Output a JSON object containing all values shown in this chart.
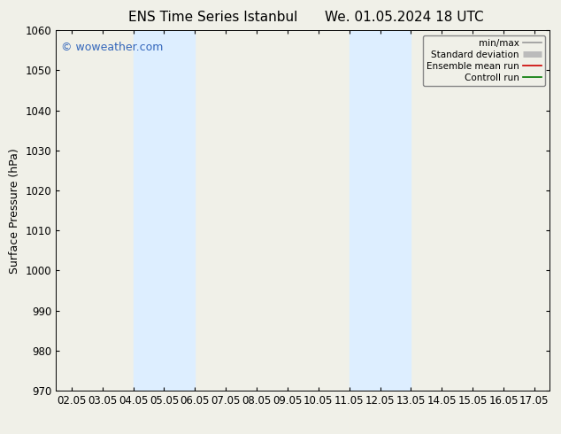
{
  "title_left": "ENS Time Series Istanbul",
  "title_right": "We. 01.05.2024 18 UTC",
  "ylabel": "Surface Pressure (hPa)",
  "ylim": [
    970,
    1060
  ],
  "yticks": [
    970,
    980,
    990,
    1000,
    1010,
    1020,
    1030,
    1040,
    1050,
    1060
  ],
  "xlim": [
    1.5,
    17.5
  ],
  "xtick_labels": [
    "02.05",
    "03.05",
    "04.05",
    "05.05",
    "06.05",
    "07.05",
    "08.05",
    "09.05",
    "10.05",
    "11.05",
    "12.05",
    "13.05",
    "14.05",
    "15.05",
    "16.05",
    "17.05"
  ],
  "xtick_positions": [
    2,
    3,
    4,
    5,
    6,
    7,
    8,
    9,
    10,
    11,
    12,
    13,
    14,
    15,
    16,
    17
  ],
  "shaded_regions": [
    {
      "xmin": 4.0,
      "xmax": 6.0
    },
    {
      "xmin": 11.0,
      "xmax": 13.0
    }
  ],
  "shade_color": "#ddeeff",
  "background_color": "#f0f0e8",
  "plot_bg_color": "#f0f0e8",
  "watermark_text": "© woweather.com",
  "watermark_color": "#3366bb",
  "legend_entries": [
    {
      "label": "min/max",
      "color": "#999999",
      "lw": 1.2
    },
    {
      "label": "Standard deviation",
      "color": "#bbbbbb",
      "lw": 5
    },
    {
      "label": "Ensemble mean run",
      "color": "#cc0000",
      "lw": 1.2
    },
    {
      "label": "Controll run",
      "color": "#007700",
      "lw": 1.2
    }
  ],
  "title_fontsize": 11,
  "tick_fontsize": 8.5,
  "ylabel_fontsize": 9,
  "watermark_fontsize": 9
}
